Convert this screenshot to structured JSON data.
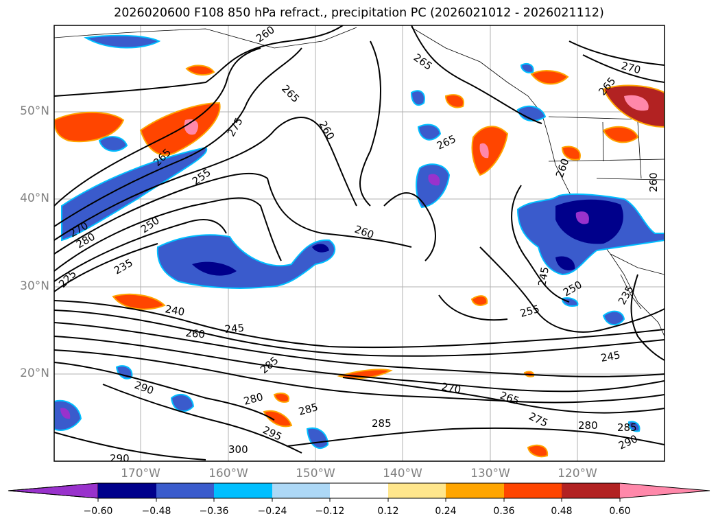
{
  "title": "2026020600 F108 850 hPa refract., precipitation PC (2026021012 - 2026021112)",
  "map": {
    "lat_labels": [
      "50°N",
      "40°N",
      "30°N",
      "20°N"
    ],
    "lon_labels": [
      "170°W",
      "160°W",
      "150°W",
      "140°W",
      "130°W",
      "120°W"
    ],
    "contour_labels": [
      "260",
      "265",
      "265",
      "260",
      "275",
      "265",
      "255",
      "270",
      "280",
      "250",
      "235",
      "260",
      "240",
      "260",
      "245",
      "255",
      "250",
      "245",
      "260",
      "265",
      "270",
      "280",
      "285",
      "285",
      "295",
      "290",
      "300",
      "290",
      "270",
      "265",
      "275",
      "280",
      "285",
      "290",
      "265",
      "260",
      "245",
      "235",
      "225",
      "285"
    ]
  },
  "colorbar": {
    "colors": [
      "#9932cc",
      "#00008b",
      "#3a5bcc",
      "#00bfff",
      "#add8f6",
      "#ffffff",
      "#ffe68c",
      "#ffa500",
      "#ff4500",
      "#b22222",
      "#ff88aa"
    ],
    "tick_labels": [
      "−0.60",
      "−0.48",
      "−0.36",
      "−0.24",
      "−0.12",
      "0.12",
      "0.24",
      "0.36",
      "0.48",
      "0.60"
    ]
  }
}
